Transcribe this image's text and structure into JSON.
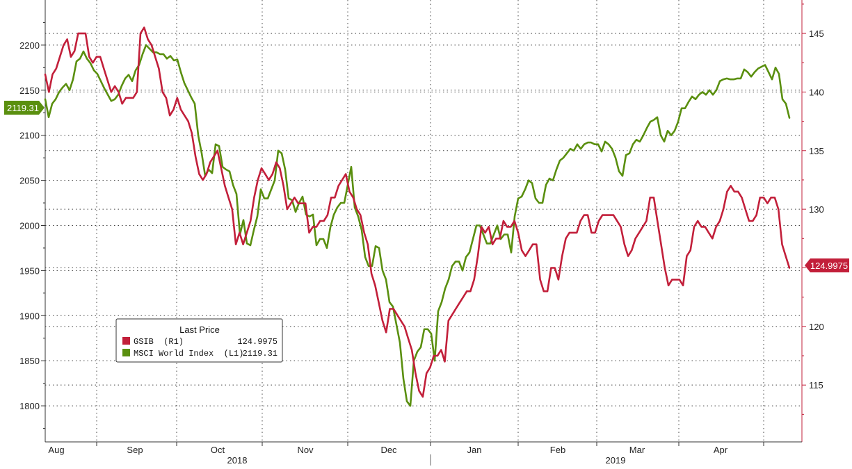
{
  "chart_data": {
    "type": "line",
    "legend": {
      "title": "Last Price",
      "entries": [
        {
          "label": "GSIB  (R1)",
          "value": "124.9975",
          "color": "#c21f3a"
        },
        {
          "label": "MSCI World Index  (L1)",
          "value": "2119.31",
          "color": "#5a8f0f"
        }
      ],
      "placement": "bottom-left"
    },
    "left_axis": {
      "ticks": [
        1800,
        1850,
        1900,
        1950,
        2000,
        2050,
        2100,
        2150,
        2200
      ],
      "range": [
        1760,
        2250
      ]
    },
    "right_axis": {
      "ticks": [
        115,
        120,
        125,
        130,
        135,
        140,
        145
      ],
      "range": [
        110.15,
        147.85
      ]
    },
    "x_axis": {
      "months": [
        "Aug",
        "Sep",
        "Oct",
        "Nov",
        "Dec",
        "Jan",
        "Feb",
        "Mar",
        "Apr"
      ],
      "years": [
        "2018",
        "2019"
      ]
    },
    "grid": true,
    "last_value_tags": {
      "left": "2119.31",
      "right": "124.9975"
    },
    "series": [
      {
        "name": "MSCI World Index",
        "axis": "left",
        "color": "#5a8f0f",
        "values": [
          2140,
          2120,
          2135,
          2140,
          2148,
          2153,
          2157,
          2150,
          2162,
          2182,
          2185,
          2193,
          2185,
          2180,
          2172,
          2168,
          2160,
          2152,
          2145,
          2138,
          2140,
          2145,
          2155,
          2163,
          2167,
          2160,
          2172,
          2178,
          2190,
          2200,
          2196,
          2192,
          2192,
          2190,
          2190,
          2185,
          2188,
          2183,
          2184,
          2170,
          2158,
          2150,
          2142,
          2135,
          2100,
          2080,
          2055,
          2062,
          2058,
          2090,
          2088,
          2065,
          2062,
          2060,
          2045,
          2035,
          1990,
          2006,
          1980,
          1978,
          1995,
          2010,
          2040,
          2030,
          2030,
          2040,
          2050,
          2083,
          2080,
          2062,
          2030,
          2028,
          2015,
          2025,
          2032,
          2012,
          2010,
          2012,
          1978,
          1985,
          1985,
          1975,
          1998,
          2012,
          2020,
          2025,
          2025,
          2045,
          2065,
          2020,
          2010,
          1995,
          1965,
          1955,
          1955,
          1977,
          1975,
          1950,
          1940,
          1915,
          1910,
          1890,
          1870,
          1830,
          1805,
          1800,
          1850,
          1860,
          1865,
          1885,
          1885,
          1880,
          1850,
          1905,
          1915,
          1930,
          1940,
          1955,
          1960,
          1960,
          1950,
          1965,
          1970,
          1985,
          2000,
          2000,
          1990,
          1980,
          1980,
          1990,
          2000,
          1985,
          1990,
          1990,
          1970,
          2010,
          2030,
          2032,
          2040,
          2050,
          2047,
          2030,
          2025,
          2025,
          2045,
          2052,
          2050,
          2062,
          2072,
          2075,
          2080,
          2085,
          2083,
          2090,
          2085,
          2090,
          2092,
          2092,
          2090,
          2090,
          2082,
          2093,
          2090,
          2085,
          2075,
          2060,
          2055,
          2078,
          2080,
          2090,
          2095,
          2093,
          2100,
          2108,
          2115,
          2117,
          2120,
          2100,
          2093,
          2105,
          2100,
          2105,
          2115,
          2130,
          2130,
          2137,
          2143,
          2140,
          2145,
          2148,
          2145,
          2150,
          2145,
          2150,
          2160,
          2162,
          2163,
          2162,
          2162,
          2163,
          2163,
          2173,
          2170,
          2165,
          2170,
          2174,
          2176,
          2178,
          2170,
          2162,
          2175,
          2168,
          2140,
          2135,
          2119.31
        ]
      },
      {
        "name": "GSIB",
        "axis": "right",
        "color": "#c21f3a",
        "values": [
          141.5,
          140,
          141.5,
          142,
          143,
          144,
          144.5,
          143,
          143.5,
          145,
          145,
          145,
          143,
          142.5,
          143,
          143,
          142,
          141,
          140,
          140.5,
          140,
          139,
          139.5,
          139.5,
          139.5,
          140,
          145,
          145.5,
          144.5,
          144,
          143,
          142,
          140,
          139.5,
          138,
          138.5,
          139.5,
          138.5,
          138,
          137.5,
          136.5,
          134.5,
          133,
          132.5,
          133,
          134,
          134.5,
          135,
          133.5,
          132,
          131,
          130,
          127,
          128,
          127,
          128,
          129,
          131,
          132.5,
          133.5,
          133,
          132.5,
          133,
          134,
          133.5,
          132,
          130,
          130.5,
          131,
          130.5,
          130.5,
          130.5,
          128,
          128.5,
          128.5,
          129,
          129,
          129.5,
          131,
          131,
          132,
          132.5,
          133,
          131.5,
          131,
          130,
          129.5,
          128,
          127,
          124.5,
          123.5,
          122,
          120.5,
          119.5,
          121.5,
          121.5,
          121,
          120.5,
          120,
          119,
          118,
          116,
          114.5,
          114,
          116,
          116.5,
          117.5,
          117.5,
          118,
          117,
          120.5,
          121,
          121.5,
          122,
          122.5,
          123,
          123,
          124,
          126,
          128.5,
          128,
          128.5,
          127,
          127.5,
          127.5,
          129,
          128.5,
          128.5,
          129,
          128,
          126.5,
          126,
          126.5,
          127,
          127,
          124,
          123,
          123,
          125,
          125,
          124,
          126,
          127.5,
          128,
          128,
          128,
          129,
          129.5,
          129.5,
          128,
          128,
          129,
          129.5,
          129.5,
          129.5,
          129.5,
          129,
          128.5,
          127,
          126,
          126.5,
          127.5,
          128,
          128.5,
          129,
          131,
          131,
          129,
          127,
          125,
          123.5,
          124,
          124,
          124,
          123.5,
          126,
          126.5,
          128.5,
          129,
          128.5,
          128.5,
          128,
          127.5,
          128.5,
          129,
          130,
          131.5,
          132,
          131.5,
          131.5,
          131,
          130,
          129,
          129,
          129.5,
          131,
          131,
          130.5,
          131,
          131,
          130,
          127,
          126,
          124.9975
        ]
      }
    ]
  }
}
